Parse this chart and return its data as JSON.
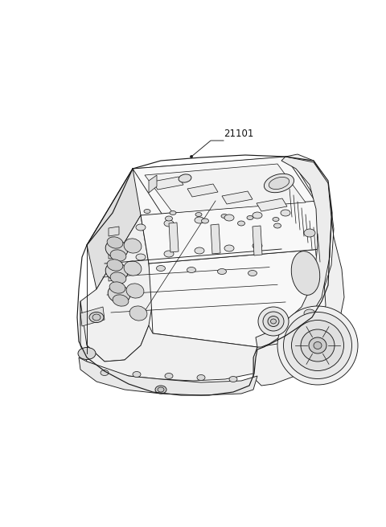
{
  "background_color": "#ffffff",
  "part_label": "21101",
  "figure_width": 4.8,
  "figure_height": 6.56,
  "label_fontsize": 8.5,
  "line_color": "#1a1a1a",
  "line_width": 0.65
}
